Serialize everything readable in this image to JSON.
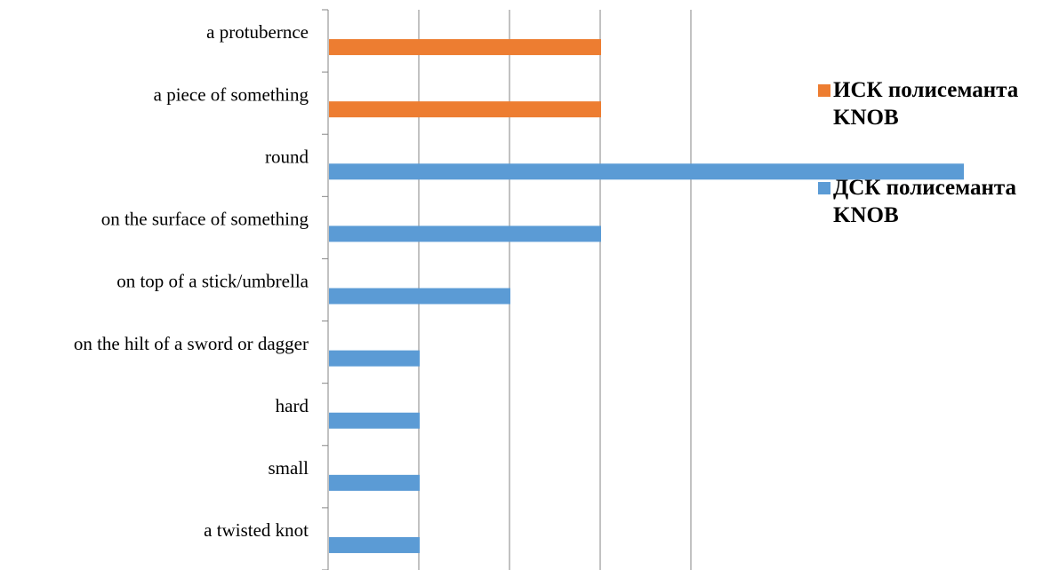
{
  "chart_data": {
    "type": "bar",
    "orientation": "horizontal",
    "categories": [
      "a protubernce",
      "a piece of something",
      "round",
      "on the surface of something",
      "on top of a stick/umbrella",
      "on the hilt of a sword or dagger",
      "hard",
      "small",
      "a twisted knot"
    ],
    "series": [
      {
        "name": "ИСК полисеманта KNOB",
        "color": "#ED7D31",
        "values": [
          3,
          3,
          null,
          null,
          null,
          null,
          null,
          null,
          null
        ]
      },
      {
        "name": "ДСК полисеманта KNOB",
        "color": "#5B9BD5",
        "values": [
          null,
          null,
          7,
          3,
          2,
          1,
          1,
          1,
          1
        ]
      }
    ],
    "xlim": [
      0,
      8
    ],
    "grid": true,
    "legend_position": "right"
  }
}
